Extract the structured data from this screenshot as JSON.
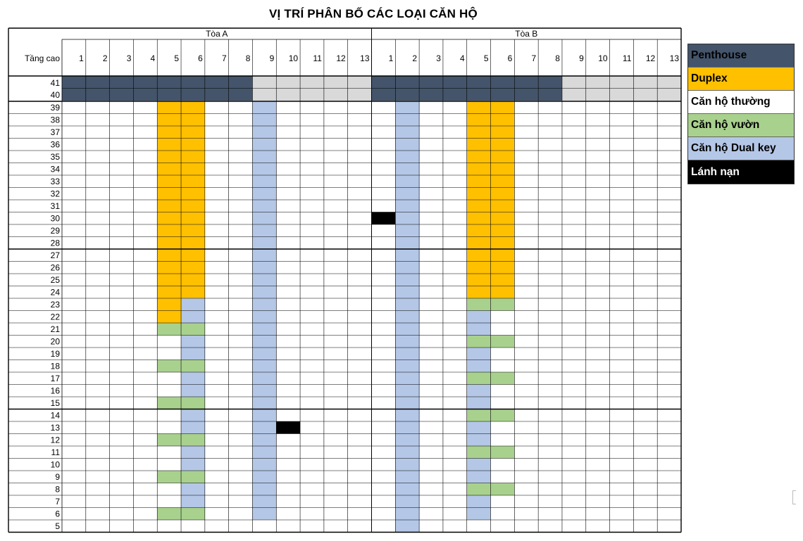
{
  "title": "VỊ TRÍ PHÂN BỐ CÁC LOẠI CĂN HỘ",
  "header": {
    "floor_label": "Tầng cao",
    "towers": [
      {
        "name": "Tòa A",
        "units": [
          "1",
          "2",
          "3",
          "4",
          "5",
          "6",
          "7",
          "8",
          "9",
          "10",
          "11",
          "12",
          "13"
        ]
      },
      {
        "name": "Tòa B",
        "units": [
          "1",
          "2",
          "3",
          "4",
          "5",
          "6",
          "7",
          "8",
          "9",
          "10",
          "11",
          "12",
          "13"
        ]
      }
    ]
  },
  "top_floors": [
    "41",
    "40"
  ],
  "floors": [
    "39",
    "38",
    "37",
    "36",
    "35",
    "34",
    "33",
    "32",
    "31",
    "30",
    "29",
    "28",
    "27",
    "26",
    "25",
    "24",
    "23",
    "22",
    "21",
    "20",
    "19",
    "18",
    "17",
    "16",
    "15",
    "14",
    "13",
    "12",
    "11",
    "10",
    "9",
    "8",
    "7",
    "6",
    "5"
  ],
  "section_breaks_after": [
    "28",
    "15"
  ],
  "legend": [
    {
      "key": "penthouse",
      "label": "Penthouse",
      "color": "#44546a",
      "text_color": "#000000"
    },
    {
      "key": "duplex",
      "label": "Duplex",
      "color": "#ffc000",
      "text_color": "#000000"
    },
    {
      "key": "normal",
      "label": "Căn hộ thường",
      "color": "#ffffff",
      "text_color": "#000000"
    },
    {
      "key": "garden",
      "label": "Căn hộ vườn",
      "color": "#a9d18e",
      "text_color": "#000000"
    },
    {
      "key": "dualkey",
      "label": "Căn hộ Dual key",
      "color": "#b4c7e7",
      "text_color": "#000000"
    },
    {
      "key": "refuge",
      "label": "Lánh nạn",
      "color": "#000000",
      "text_color": "#ffffff"
    }
  ],
  "colors": {
    "penthouse_grey_block": "#d9d9d9",
    "grid_line": "#000000"
  },
  "tower_A": {
    "top_41_40": {
      "penthouse_units": [
        1,
        2,
        3,
        4,
        5,
        6,
        7,
        8
      ],
      "grey_units": [
        9,
        10,
        11,
        12,
        13
      ]
    },
    "duplex": [
      {
        "unit": 5,
        "from": 22,
        "to": 39
      },
      {
        "unit": 6,
        "from": 24,
        "to": 39
      }
    ],
    "dualkey": [
      {
        "unit": 6,
        "floors": [
          23,
          22,
          20,
          19,
          17,
          16,
          15,
          14,
          13,
          12,
          11,
          10,
          9,
          8,
          7,
          6
        ]
      },
      {
        "unit": 9,
        "from": 6,
        "to": 39
      }
    ],
    "garden": [
      {
        "unit": 5,
        "floors": [
          21,
          18,
          15,
          12,
          9,
          6
        ]
      },
      {
        "unit": 6,
        "floors": [
          21,
          18,
          15,
          12,
          9,
          6
        ]
      }
    ],
    "refuge": [
      {
        "unit": 10,
        "floor": 13
      }
    ]
  },
  "tower_B": {
    "top_41_40": {
      "penthouse_units": [
        1,
        2,
        3,
        4,
        5,
        6,
        7,
        8
      ],
      "grey_units": [
        9,
        10,
        11,
        12,
        13
      ]
    },
    "duplex": [
      {
        "unit": 5,
        "from": 24,
        "to": 39
      },
      {
        "unit": 6,
        "from": 24,
        "to": 39
      }
    ],
    "dualkey": [
      {
        "unit": 2,
        "from": 5,
        "to": 39
      },
      {
        "unit": 5,
        "floors": [
          22,
          21,
          19,
          18,
          16,
          15,
          13,
          12,
          10,
          9,
          7,
          6
        ]
      }
    ],
    "garden": [
      {
        "unit": 5,
        "floors": [
          23,
          20,
          17,
          14,
          11,
          8
        ]
      },
      {
        "unit": 6,
        "floors": [
          23,
          20,
          17,
          14,
          11,
          8
        ]
      }
    ],
    "refuge": [
      {
        "unit": 1,
        "floor": 30
      }
    ]
  }
}
